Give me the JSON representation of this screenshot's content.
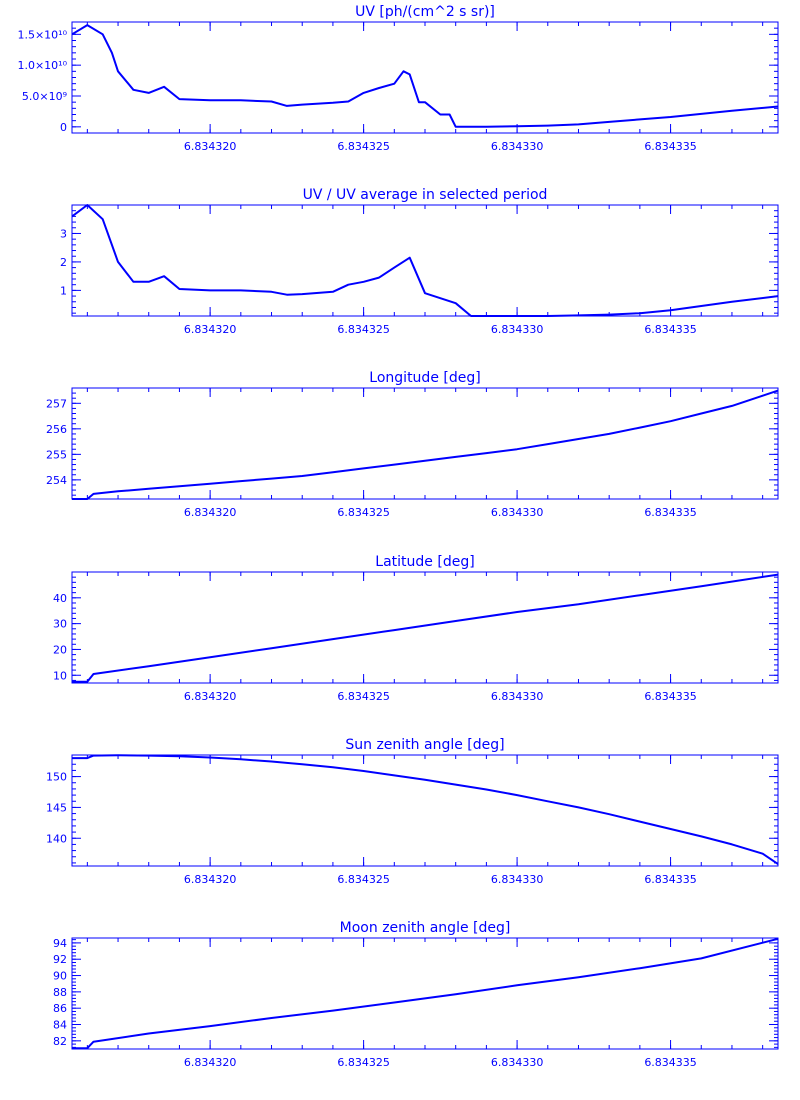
{
  "chart_data": [
    {
      "type": "line",
      "title": "UV [ph/(cm^2 s sr)]",
      "xlim": [
        6.8343155,
        6.8343385
      ],
      "ylim": [
        -1000000000.0,
        17000000000.0
      ],
      "x_ticks": [
        6.83432,
        6.834325,
        6.83433,
        6.834335
      ],
      "x_tick_labels": [
        "6.834320",
        "6.834325",
        "6.834330",
        "6.834335"
      ],
      "y_ticks": [
        0,
        5000000000.0,
        10000000000.0,
        15000000000.0
      ],
      "y_tick_labels": [
        "0",
        "5.0×10⁹",
        "1.0×10¹⁰",
        "1.5×10¹⁰"
      ],
      "series": [
        {
          "x": [
            6.8343155,
            6.834316,
            6.8343165,
            6.8343168,
            6.834317,
            6.8343175,
            6.834318,
            6.8343185,
            6.834319,
            6.83432,
            6.834321,
            6.834322,
            6.8343225,
            6.834323,
            6.834324,
            6.8343245,
            6.834325,
            6.8343255,
            6.834326,
            6.8343263,
            6.8343265,
            6.8343268,
            6.834327,
            6.8343275,
            6.8343278,
            6.834328,
            6.834329,
            6.83433,
            6.834331,
            6.834332,
            6.834333,
            6.834334,
            6.834335,
            6.834336,
            6.834337,
            6.8343385
          ],
          "y": [
            15000000000.0,
            16500000000.0,
            15000000000.0,
            12000000000.0,
            9000000000.0,
            6000000000.0,
            5500000000.0,
            6500000000.0,
            4500000000.0,
            4300000000.0,
            4300000000.0,
            4100000000.0,
            3400000000.0,
            3600000000.0,
            3900000000.0,
            4100000000.0,
            5500000000.0,
            6300000000.0,
            7000000000.0,
            9000000000.0,
            8500000000.0,
            4000000000.0,
            4000000000.0,
            2000000000.0,
            2000000000.0,
            0,
            0,
            100000000.0,
            200000000.0,
            400000000.0,
            800000000.0,
            1200000000.0,
            1600000000.0,
            2100000000.0,
            2600000000.0,
            3300000000.0
          ]
        }
      ]
    },
    {
      "type": "line",
      "title": "UV / UV average in selected period",
      "xlim": [
        6.8343155,
        6.8343385
      ],
      "ylim": [
        0.1,
        4.0
      ],
      "x_ticks": [
        6.83432,
        6.834325,
        6.83433,
        6.834335
      ],
      "x_tick_labels": [
        "6.834320",
        "6.834325",
        "6.834330",
        "6.834335"
      ],
      "y_ticks": [
        1,
        2,
        3
      ],
      "y_tick_labels": [
        "1",
        "2",
        "3"
      ],
      "series": [
        {
          "x": [
            6.8343155,
            6.834316,
            6.8343165,
            6.834317,
            6.8343175,
            6.834318,
            6.8343185,
            6.834319,
            6.83432,
            6.834321,
            6.834322,
            6.8343225,
            6.834323,
            6.834324,
            6.8343245,
            6.834325,
            6.8343255,
            6.834326,
            6.8343265,
            6.834327,
            6.834328,
            6.8343285,
            6.834329,
            6.83433,
            6.834331,
            6.834332,
            6.834333,
            6.834334,
            6.834335,
            6.834336,
            6.834337,
            6.8343385
          ],
          "y": [
            3.6,
            4.0,
            3.5,
            2.0,
            1.3,
            1.3,
            1.5,
            1.05,
            1.0,
            1.0,
            0.95,
            0.85,
            0.87,
            0.95,
            1.2,
            1.3,
            1.45,
            1.8,
            2.15,
            0.9,
            0.55,
            0.1,
            0.1,
            0.1,
            0.1,
            0.12,
            0.15,
            0.2,
            0.3,
            0.45,
            0.6,
            0.8
          ]
        }
      ]
    },
    {
      "type": "line",
      "title": "Longitude [deg]",
      "xlim": [
        6.8343155,
        6.8343385
      ],
      "ylim": [
        253.25,
        257.6
      ],
      "x_ticks": [
        6.83432,
        6.834325,
        6.83433,
        6.834335
      ],
      "x_tick_labels": [
        "6.834320",
        "6.834325",
        "6.834330",
        "6.834335"
      ],
      "y_ticks": [
        254,
        255,
        256,
        257
      ],
      "y_tick_labels": [
        "254",
        "255",
        "256",
        "257"
      ],
      "series": [
        {
          "x": [
            6.8343155,
            6.834316,
            6.8343162,
            6.834317,
            6.834318,
            6.834319,
            6.83432,
            6.834321,
            6.834322,
            6.834323,
            6.834324,
            6.834325,
            6.834326,
            6.834327,
            6.834328,
            6.834329,
            6.83433,
            6.834331,
            6.834332,
            6.834333,
            6.834334,
            6.834335,
            6.834336,
            6.834337,
            6.834338,
            6.8343385
          ],
          "y": [
            253.25,
            253.25,
            253.45,
            253.55,
            253.65,
            253.75,
            253.85,
            253.95,
            254.05,
            254.15,
            254.3,
            254.45,
            254.6,
            254.75,
            254.9,
            255.05,
            255.2,
            255.4,
            255.6,
            255.8,
            256.05,
            256.3,
            256.6,
            256.9,
            257.3,
            257.5
          ]
        }
      ]
    },
    {
      "type": "line",
      "title": "Latitude [deg]",
      "xlim": [
        6.8343155,
        6.8343385
      ],
      "ylim": [
        7,
        50
      ],
      "x_ticks": [
        6.83432,
        6.834325,
        6.83433,
        6.834335
      ],
      "x_tick_labels": [
        "6.834320",
        "6.834325",
        "6.834330",
        "6.834335"
      ],
      "y_ticks": [
        10,
        20,
        30,
        40
      ],
      "y_tick_labels": [
        "10",
        "20",
        "30",
        "40"
      ],
      "series": [
        {
          "x": [
            6.8343155,
            6.834316,
            6.8343162,
            6.834318,
            6.83432,
            6.834322,
            6.834324,
            6.834326,
            6.834328,
            6.83433,
            6.834332,
            6.834334,
            6.834336,
            6.8343385
          ],
          "y": [
            7.5,
            7.5,
            10.5,
            13.5,
            17,
            20.5,
            24,
            27.5,
            31,
            34.5,
            37.5,
            41,
            44.5,
            49
          ]
        }
      ]
    },
    {
      "type": "line",
      "title": "Sun zenith angle [deg]",
      "xlim": [
        6.8343155,
        6.8343385
      ],
      "ylim": [
        135.5,
        153.5
      ],
      "x_ticks": [
        6.83432,
        6.834325,
        6.83433,
        6.834335
      ],
      "x_tick_labels": [
        "6.834320",
        "6.834325",
        "6.834330",
        "6.834335"
      ],
      "y_ticks": [
        140,
        145,
        150
      ],
      "y_tick_labels": [
        "140",
        "145",
        "150"
      ],
      "series": [
        {
          "x": [
            6.8343155,
            6.834316,
            6.8343162,
            6.834317,
            6.834318,
            6.834319,
            6.83432,
            6.834321,
            6.834322,
            6.834323,
            6.834324,
            6.834325,
            6.834326,
            6.834327,
            6.834328,
            6.834329,
            6.83433,
            6.834331,
            6.834332,
            6.834333,
            6.834334,
            6.834335,
            6.834336,
            6.834337,
            6.834338,
            6.8343385
          ],
          "y": [
            153,
            153,
            153.4,
            153.45,
            153.4,
            153.3,
            153.1,
            152.8,
            152.45,
            152.0,
            151.5,
            150.9,
            150.2,
            149.5,
            148.7,
            147.9,
            147.0,
            146.0,
            145.0,
            143.9,
            142.7,
            141.5,
            140.3,
            139.0,
            137.5,
            135.8
          ]
        }
      ]
    },
    {
      "type": "line",
      "title": "Moon zenith angle [deg]",
      "xlim": [
        6.8343155,
        6.8343385
      ],
      "ylim": [
        81,
        94.6
      ],
      "x_ticks": [
        6.83432,
        6.834325,
        6.83433,
        6.834335
      ],
      "x_tick_labels": [
        "6.834320",
        "6.834325",
        "6.834330",
        "6.834335"
      ],
      "y_ticks": [
        82,
        84,
        86,
        88,
        90,
        92,
        94
      ],
      "y_tick_labels": [
        "82",
        "84",
        "86",
        "88",
        "90",
        "92",
        "94"
      ],
      "series": [
        {
          "x": [
            6.8343155,
            6.834316,
            6.8343162,
            6.834318,
            6.83432,
            6.834322,
            6.834324,
            6.834326,
            6.834328,
            6.83433,
            6.834332,
            6.834334,
            6.834336,
            6.8343385
          ],
          "y": [
            81.1,
            81.1,
            81.9,
            82.9,
            83.8,
            84.8,
            85.7,
            86.7,
            87.7,
            88.8,
            89.8,
            90.9,
            92.1,
            94.5
          ]
        }
      ]
    }
  ]
}
